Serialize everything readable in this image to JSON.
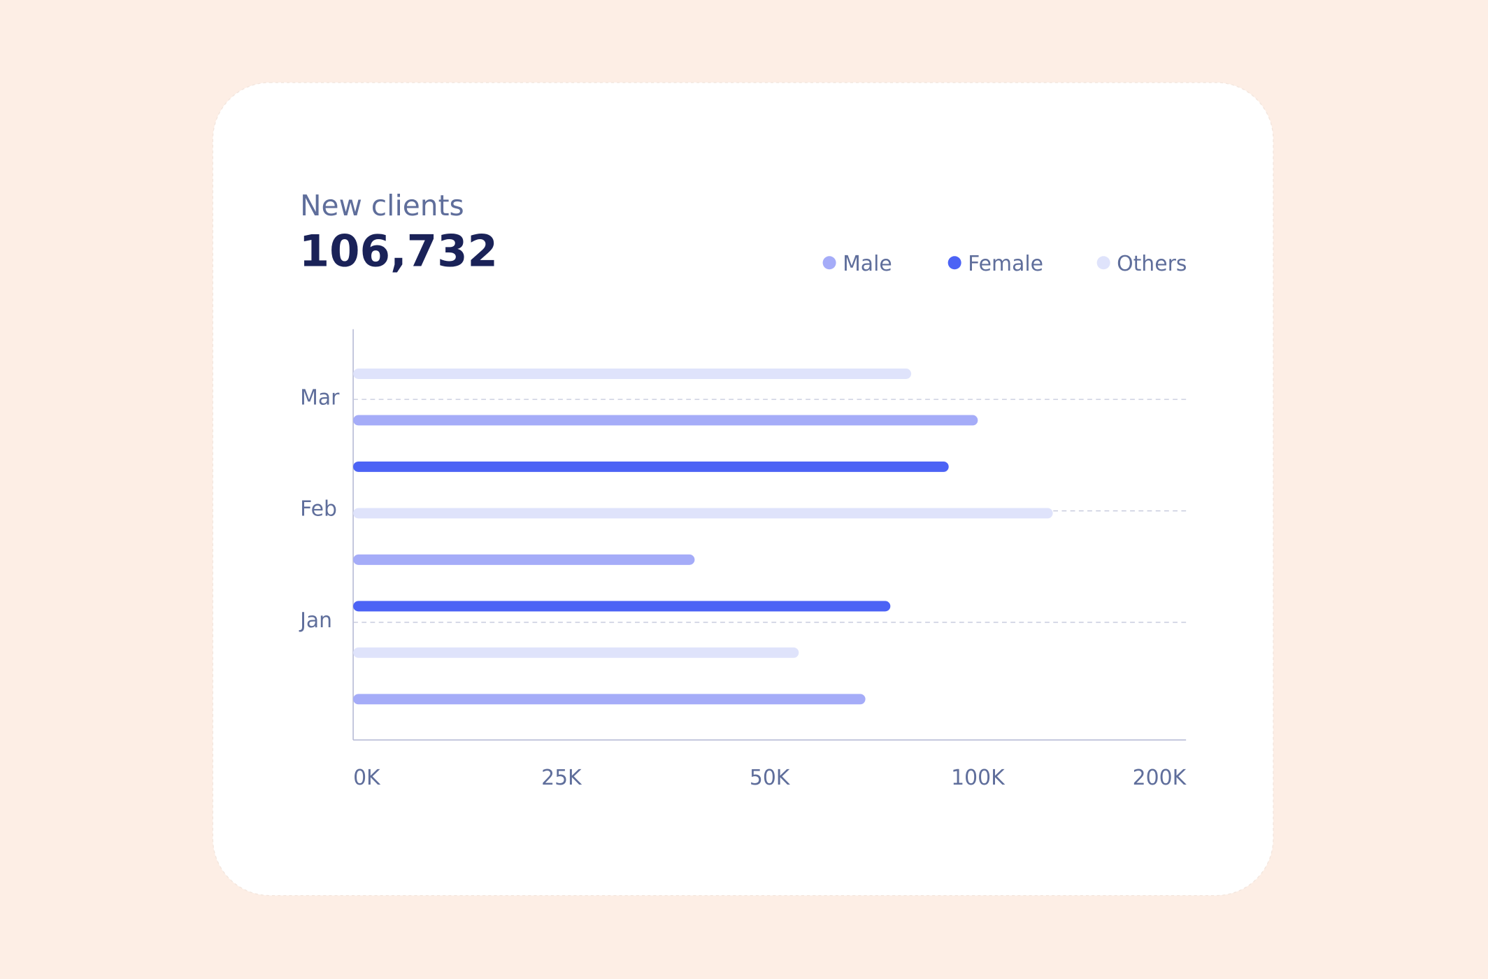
{
  "chart_data": {
    "type": "hbar",
    "title": "New clients",
    "subtitle": "106,732",
    "categories": [
      "Jan",
      "Feb",
      "Mar"
    ],
    "series": [
      {
        "name": "Male",
        "color": "#a5acf8",
        "values": [
          73,
          41,
          100
        ]
      },
      {
        "name": "Female",
        "color": "#4c63f5",
        "values": [
          79,
          93,
          null
        ]
      },
      {
        "name": "Others",
        "color": "#dfe3fb",
        "values": [
          57,
          136,
          84
        ]
      }
    ],
    "xlim": [
      0,
      200
    ],
    "xticks": [
      {
        "value": 0,
        "label": "0K"
      },
      {
        "value": 25,
        "label": "25K"
      },
      {
        "value": 50,
        "label": "50K"
      },
      {
        "value": 100,
        "label": "100K"
      },
      {
        "value": 200,
        "label": "200K"
      }
    ],
    "legend": "top-right"
  }
}
